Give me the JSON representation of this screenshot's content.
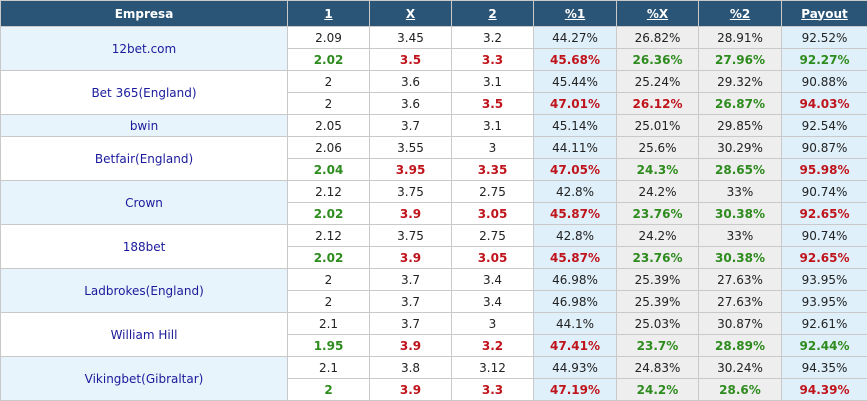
{
  "header": {
    "empresa": "Empresa",
    "col1": "1",
    "colX": "X",
    "col2": "2",
    "pct1": "%1",
    "pctX": "%X",
    "pct2": "%2",
    "payout": "Payout"
  },
  "colors": {
    "header_bg": "#2a5577",
    "up": "#c0141c",
    "down": "#2e8b1e",
    "company_link": "#1a1a9c"
  },
  "bookmakers": [
    {
      "name": "12bet.com",
      "opening": {
        "o1": "2.09",
        "oX": "3.45",
        "o2": "3.2",
        "p1": "44.27%",
        "pX": "26.82%",
        "p2": "28.91%",
        "pay": "92.52%"
      },
      "current": {
        "o1": "2.02",
        "oX": "3.5",
        "o2": "3.3",
        "p1": "45.68%",
        "pX": "26.36%",
        "p2": "27.96%",
        "pay": "92.27%"
      },
      "trend": {
        "o1": "down",
        "oX": "up",
        "o2": "up",
        "p1": "up",
        "pX": "down",
        "p2": "down",
        "pay": "down"
      }
    },
    {
      "name": "Bet 365(England)",
      "opening": {
        "o1": "2",
        "oX": "3.6",
        "o2": "3.1",
        "p1": "45.44%",
        "pX": "25.24%",
        "p2": "29.32%",
        "pay": "90.88%"
      },
      "current": {
        "o1": "2",
        "oX": "3.6",
        "o2": "3.5",
        "p1": "47.01%",
        "pX": "26.12%",
        "p2": "26.87%",
        "pay": "94.03%"
      },
      "trend": {
        "o1": "same",
        "oX": "same",
        "o2": "up",
        "p1": "up",
        "pX": "up",
        "p2": "down",
        "pay": "up"
      }
    },
    {
      "name": "bwin",
      "opening": {
        "o1": "2.05",
        "oX": "3.7",
        "o2": "3.1",
        "p1": "45.14%",
        "pX": "25.01%",
        "p2": "29.85%",
        "pay": "92.54%"
      }
    },
    {
      "name": "Betfair(England)",
      "opening": {
        "o1": "2.06",
        "oX": "3.55",
        "o2": "3",
        "p1": "44.11%",
        "pX": "25.6%",
        "p2": "30.29%",
        "pay": "90.87%"
      },
      "current": {
        "o1": "2.04",
        "oX": "3.95",
        "o2": "3.35",
        "p1": "47.05%",
        "pX": "24.3%",
        "p2": "28.65%",
        "pay": "95.98%"
      },
      "trend": {
        "o1": "down",
        "oX": "up",
        "o2": "up",
        "p1": "up",
        "pX": "down",
        "p2": "down",
        "pay": "up"
      }
    },
    {
      "name": "Crown",
      "opening": {
        "o1": "2.12",
        "oX": "3.75",
        "o2": "2.75",
        "p1": "42.8%",
        "pX": "24.2%",
        "p2": "33%",
        "pay": "90.74%"
      },
      "current": {
        "o1": "2.02",
        "oX": "3.9",
        "o2": "3.05",
        "p1": "45.87%",
        "pX": "23.76%",
        "p2": "30.38%",
        "pay": "92.65%"
      },
      "trend": {
        "o1": "down",
        "oX": "up",
        "o2": "up",
        "p1": "up",
        "pX": "down",
        "p2": "down",
        "pay": "up"
      }
    },
    {
      "name": "188bet",
      "opening": {
        "o1": "2.12",
        "oX": "3.75",
        "o2": "2.75",
        "p1": "42.8%",
        "pX": "24.2%",
        "p2": "33%",
        "pay": "90.74%"
      },
      "current": {
        "o1": "2.02",
        "oX": "3.9",
        "o2": "3.05",
        "p1": "45.87%",
        "pX": "23.76%",
        "p2": "30.38%",
        "pay": "92.65%"
      },
      "trend": {
        "o1": "down",
        "oX": "up",
        "o2": "up",
        "p1": "up",
        "pX": "down",
        "p2": "down",
        "pay": "up"
      }
    },
    {
      "name": "Ladbrokes(England)",
      "opening": {
        "o1": "2",
        "oX": "3.7",
        "o2": "3.4",
        "p1": "46.98%",
        "pX": "25.39%",
        "p2": "27.63%",
        "pay": "93.95%"
      },
      "current": {
        "o1": "2",
        "oX": "3.7",
        "o2": "3.4",
        "p1": "46.98%",
        "pX": "25.39%",
        "p2": "27.63%",
        "pay": "93.95%"
      },
      "trend": {
        "o1": "same",
        "oX": "same",
        "o2": "same",
        "p1": "same",
        "pX": "same",
        "p2": "same",
        "pay": "same"
      }
    },
    {
      "name": "William Hill",
      "opening": {
        "o1": "2.1",
        "oX": "3.7",
        "o2": "3",
        "p1": "44.1%",
        "pX": "25.03%",
        "p2": "30.87%",
        "pay": "92.61%"
      },
      "current": {
        "o1": "1.95",
        "oX": "3.9",
        "o2": "3.2",
        "p1": "47.41%",
        "pX": "23.7%",
        "p2": "28.89%",
        "pay": "92.44%"
      },
      "trend": {
        "o1": "down",
        "oX": "up",
        "o2": "up",
        "p1": "up",
        "pX": "down",
        "p2": "down",
        "pay": "down"
      }
    },
    {
      "name": "Vikingbet(Gibraltar)",
      "opening": {
        "o1": "2.1",
        "oX": "3.8",
        "o2": "3.12",
        "p1": "44.93%",
        "pX": "24.83%",
        "p2": "30.24%",
        "pay": "94.35%"
      },
      "current": {
        "o1": "2",
        "oX": "3.9",
        "o2": "3.3",
        "p1": "47.19%",
        "pX": "24.2%",
        "p2": "28.6%",
        "pay": "94.39%"
      },
      "trend": {
        "o1": "down",
        "oX": "up",
        "o2": "up",
        "p1": "up",
        "pX": "down",
        "p2": "down",
        "pay": "up"
      }
    }
  ]
}
